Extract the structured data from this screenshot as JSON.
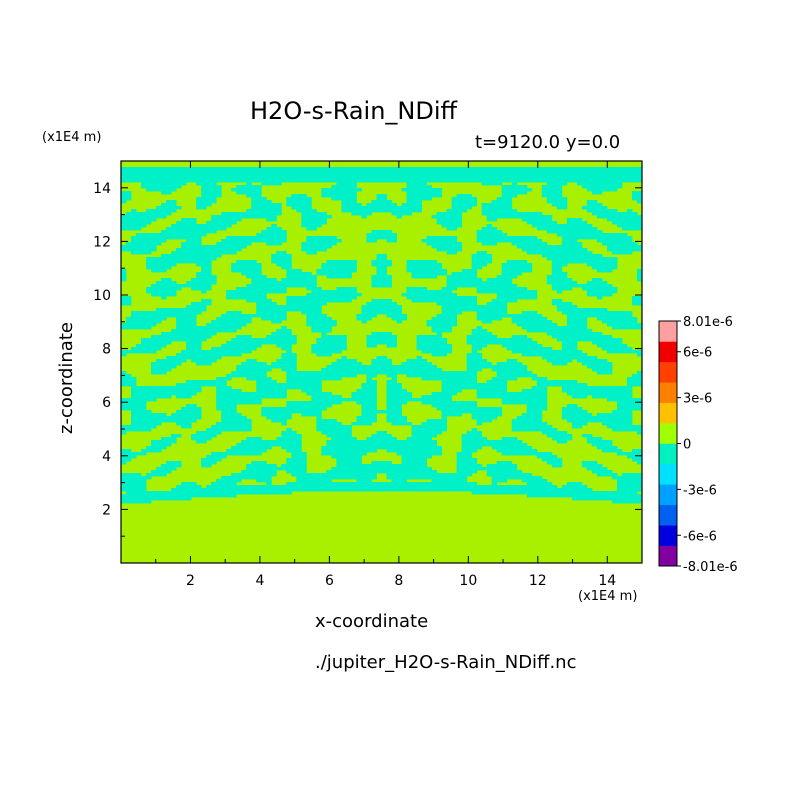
{
  "chart_data": {
    "type": "heatmap",
    "title": "H2O-s-Rain_NDiff",
    "subtitle": "t=9120.0 y=0.0",
    "xlabel": "x-coordinate",
    "ylabel": "z-coordinate",
    "x_unit": "(x1E4 m)",
    "y_unit": "(x1E4 m)",
    "xlim": [
      0,
      15
    ],
    "ylim": [
      0,
      15
    ],
    "x_ticks": [
      "2",
      "4",
      "6",
      "8",
      "10",
      "12",
      "14"
    ],
    "y_ticks": [
      "2",
      "4",
      "6",
      "8",
      "10",
      "12",
      "14"
    ],
    "grid": false,
    "colorbar": {
      "labels": [
        "8.01e-6",
        "6e-6",
        "3e-6",
        "0",
        "-3e-6",
        "-6e-6",
        "-8.01e-6"
      ],
      "min": -8.01e-06,
      "max": 8.01e-06,
      "colors": [
        "#8000a0",
        "#0000e0",
        "#0060f0",
        "#00a0ff",
        "#00e0ff",
        "#00f0c0",
        "#a0ff00",
        "#ffc000",
        "#ff8000",
        "#ff4000",
        "#f00000",
        "#ffa0a0"
      ]
    },
    "field_description_values": {
      "dominant_low_level": 0,
      "pattern_positive": 0,
      "pattern_negative": -1e-06
    }
  },
  "footer": {
    "filename": "./jupiter_H2O-s-Rain_NDiff.nc"
  }
}
